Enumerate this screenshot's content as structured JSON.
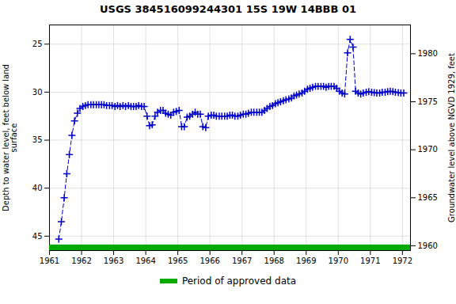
{
  "chart_data": {
    "type": "line",
    "title": "USGS 384516099244301 15S 19W 14BBB 01",
    "ylabel": "Depth to water level, feet below land\nsurface",
    "y2label": "Groundwater level above NGVD 1929, feet",
    "xlim": [
      1961.0,
      1972.25
    ],
    "xticks": [
      1961,
      1962,
      1963,
      1964,
      1965,
      1966,
      1967,
      1968,
      1969,
      1970,
      1971,
      1972
    ],
    "ylim": [
      46.5,
      23.0
    ],
    "yticks": [
      25,
      30,
      35,
      40,
      45
    ],
    "y2lim": [
      1959.5,
      1983.0
    ],
    "y2ticks": [
      1960,
      1965,
      1970,
      1975,
      1980
    ],
    "grid": true,
    "legend": "bottom",
    "color": "#0000cc",
    "line_style": "dashed",
    "marker": "plus",
    "x": [
      1961.29,
      1961.37,
      1961.46,
      1961.54,
      1961.62,
      1961.7,
      1961.78,
      1961.87,
      1961.95,
      1962.04,
      1962.12,
      1962.2,
      1962.29,
      1962.37,
      1962.46,
      1962.54,
      1962.62,
      1962.7,
      1962.78,
      1962.87,
      1962.95,
      1963.04,
      1963.12,
      1963.2,
      1963.29,
      1963.37,
      1963.46,
      1963.54,
      1963.62,
      1963.7,
      1963.78,
      1963.87,
      1963.95,
      1964.04,
      1964.12,
      1964.2,
      1964.29,
      1964.37,
      1964.46,
      1964.54,
      1964.62,
      1964.7,
      1964.78,
      1964.87,
      1964.95,
      1965.04,
      1965.12,
      1965.2,
      1965.29,
      1965.37,
      1965.46,
      1965.54,
      1965.62,
      1965.7,
      1965.78,
      1965.87,
      1965.95,
      1966.04,
      1966.12,
      1966.2,
      1966.29,
      1966.37,
      1966.46,
      1966.54,
      1966.62,
      1966.7,
      1966.78,
      1966.87,
      1966.95,
      1967.04,
      1967.12,
      1967.2,
      1967.29,
      1967.37,
      1967.46,
      1967.54,
      1967.62,
      1967.7,
      1967.78,
      1967.87,
      1967.95,
      1968.04,
      1968.12,
      1968.2,
      1968.29,
      1968.37,
      1968.46,
      1968.54,
      1968.62,
      1968.7,
      1968.78,
      1968.87,
      1968.95,
      1969.04,
      1969.12,
      1969.2,
      1969.29,
      1969.37,
      1969.46,
      1969.54,
      1969.62,
      1969.7,
      1969.78,
      1969.87,
      1969.95,
      1970.04,
      1970.12,
      1970.2,
      1970.29,
      1970.37,
      1970.46,
      1970.54,
      1970.62,
      1970.7,
      1970.78,
      1970.87,
      1970.95,
      1971.04,
      1971.12,
      1971.2,
      1971.29,
      1971.37,
      1971.46,
      1971.54,
      1971.62,
      1971.7,
      1971.78,
      1971.87,
      1971.95,
      1972.04
    ],
    "values": [
      45.3,
      43.5,
      41.0,
      38.5,
      36.5,
      34.5,
      33.0,
      32.2,
      31.7,
      31.5,
      31.4,
      31.3,
      31.3,
      31.3,
      31.3,
      31.3,
      31.3,
      31.3,
      31.4,
      31.4,
      31.4,
      31.5,
      31.4,
      31.5,
      31.4,
      31.5,
      31.4,
      31.5,
      31.5,
      31.5,
      31.4,
      31.5,
      31.5,
      32.5,
      33.5,
      33.4,
      32.5,
      32.1,
      31.9,
      31.9,
      32.2,
      32.3,
      32.4,
      32.1,
      32.0,
      31.9,
      33.6,
      33.6,
      32.6,
      32.5,
      32.3,
      32.1,
      32.3,
      32.3,
      33.6,
      33.7,
      32.5,
      32.4,
      32.4,
      32.5,
      32.5,
      32.5,
      32.5,
      32.5,
      32.4,
      32.4,
      32.5,
      32.5,
      32.4,
      32.3,
      32.3,
      32.2,
      32.1,
      32.1,
      32.1,
      32.1,
      32.1,
      31.9,
      31.7,
      31.5,
      31.4,
      31.2,
      31.1,
      31.0,
      30.9,
      30.8,
      30.7,
      30.6,
      30.4,
      30.3,
      30.2,
      30.1,
      29.9,
      29.7,
      29.6,
      29.5,
      29.4,
      29.4,
      29.4,
      29.4,
      29.5,
      29.4,
      29.4,
      29.4,
      29.6,
      29.9,
      30.1,
      30.2,
      25.9,
      24.5,
      25.3,
      29.9,
      30.1,
      30.2,
      30.1,
      30.0,
      29.95,
      30.0,
      30.05,
      30.1,
      30.1,
      30.0,
      30.0,
      29.95,
      29.9,
      29.95,
      30.0,
      30.05,
      30.1,
      30.1
    ],
    "band": {
      "name": "Period of approved data",
      "color": "#00aa00",
      "x": [
        1961.0,
        1972.25
      ]
    }
  }
}
